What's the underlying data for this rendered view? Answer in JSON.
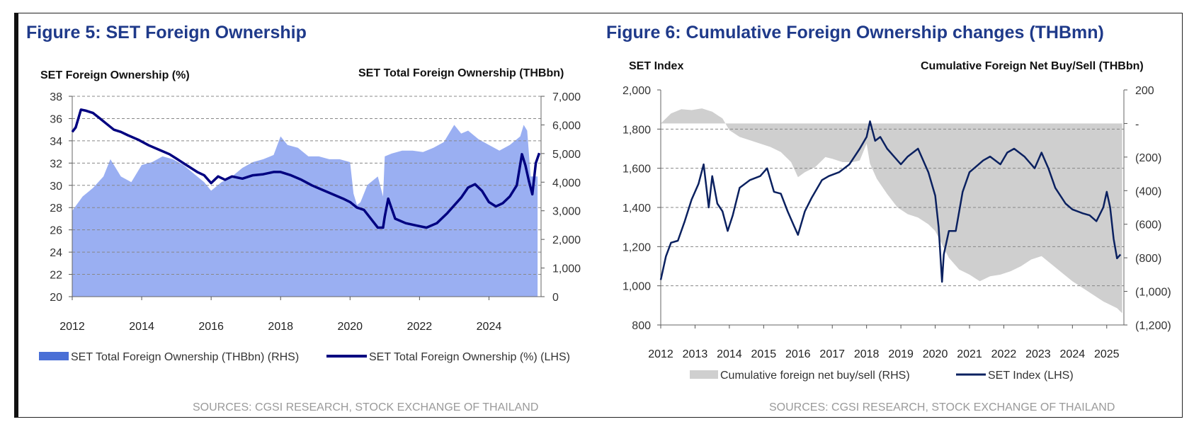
{
  "charts": {
    "left": {
      "figure_title": "Figure 5: SET Foreign Ownership",
      "y_left_title": "SET Foreign Ownership (%)",
      "y_right_title": "SET Total Foreign Ownership (THBbn)",
      "source": "SOURCES: CGSI RESEARCH,  STOCK EXCHANGE OF THAILAND"
    },
    "right": {
      "figure_title": "Figure 6: Cumulative Foreign Ownership changes (THBmn)",
      "y_left_title": "SET Index",
      "y_right_title": "Cumulative  Foreign  Net  Buy/Sell  (THBbn)",
      "source": "SOURCES: CGSI RESEARCH,  STOCK EXCHANGE OF THAILAND"
    }
  },
  "colors": {
    "title_blue": "#1f3a8a",
    "area_blue": "#9aaff2",
    "line_navy": "#000080",
    "line_dark_navy": "#0b2160",
    "area_grey": "#cfcfcf",
    "grid": "#888888",
    "source_grey": "#9a9a9a"
  },
  "chart_data": [
    {
      "type": "area",
      "title": "Figure 5: SET Foreign Ownership",
      "x_ticks": [
        "2012",
        "2014",
        "2016",
        "2018",
        "2020",
        "2022",
        "2024"
      ],
      "xlim": [
        2012.0,
        2025.5
      ],
      "y_left": {
        "label": "SET Foreign Ownership (%)",
        "lim": [
          20,
          38
        ],
        "ticks": [
          "20",
          "22",
          "24",
          "26",
          "28",
          "30",
          "32",
          "34",
          "36",
          "38"
        ]
      },
      "y_right": {
        "label": "SET Total Foreign Ownership (THBbn)",
        "lim": [
          0,
          7000
        ],
        "ticks": [
          "0",
          "1,000",
          "2,000",
          "3,000",
          "4,000",
          "5,000",
          "6,000",
          "7,000"
        ]
      },
      "grid": "horizontal dashed",
      "legend_position": "bottom",
      "series": [
        {
          "name": "SET Total Foreign Ownership (THBbn) (RHS)",
          "kind": "area",
          "axis": "right",
          "x": [
            2012.0,
            2012.3,
            2012.6,
            2012.9,
            2013.1,
            2013.4,
            2013.7,
            2014.0,
            2014.3,
            2014.6,
            2014.9,
            2015.2,
            2015.5,
            2015.8,
            2016.0,
            2016.3,
            2016.6,
            2016.9,
            2017.2,
            2017.5,
            2017.8,
            2018.0,
            2018.2,
            2018.5,
            2018.8,
            2019.1,
            2019.4,
            2019.7,
            2020.0,
            2020.1,
            2020.2,
            2020.3,
            2020.5,
            2020.8,
            2020.95,
            2021.0,
            2021.2,
            2021.5,
            2021.8,
            2022.1,
            2022.4,
            2022.7,
            2023.0,
            2023.2,
            2023.4,
            2023.7,
            2024.0,
            2024.3,
            2024.6,
            2024.9,
            2025.0,
            2025.1,
            2025.2,
            2025.4
          ],
          "y": [
            3000,
            3500,
            3800,
            4200,
            4800,
            4200,
            4000,
            4600,
            4700,
            4900,
            4800,
            4600,
            4300,
            4000,
            3700,
            4000,
            4200,
            4500,
            4700,
            4800,
            4950,
            5600,
            5300,
            5200,
            4900,
            4900,
            4800,
            4800,
            4700,
            3600,
            3200,
            3300,
            3900,
            4200,
            3500,
            4900,
            5000,
            5100,
            5100,
            5050,
            5200,
            5400,
            6000,
            5700,
            5800,
            5500,
            5300,
            5100,
            5300,
            5600,
            6000,
            5800,
            4200,
            4200
          ]
        },
        {
          "name": "SET Total Foreign Ownership (%) (LHS)",
          "kind": "line",
          "axis": "left",
          "x": [
            2012.0,
            2012.1,
            2012.25,
            2012.4,
            2012.6,
            2012.8,
            2013.0,
            2013.2,
            2013.4,
            2013.6,
            2013.9,
            2014.2,
            2014.5,
            2014.8,
            2015.0,
            2015.3,
            2015.6,
            2015.8,
            2016.0,
            2016.2,
            2016.4,
            2016.6,
            2016.9,
            2017.2,
            2017.5,
            2017.8,
            2018.0,
            2018.3,
            2018.6,
            2018.9,
            2019.2,
            2019.5,
            2019.8,
            2020.0,
            2020.2,
            2020.4,
            2020.6,
            2020.8,
            2020.95,
            2021.0,
            2021.1,
            2021.3,
            2021.6,
            2021.9,
            2022.2,
            2022.5,
            2022.8,
            2023.0,
            2023.2,
            2023.4,
            2023.6,
            2023.8,
            2024.0,
            2024.2,
            2024.4,
            2024.6,
            2024.8,
            2024.95,
            2025.05,
            2025.15,
            2025.25,
            2025.35,
            2025.45
          ],
          "y": [
            34.8,
            35.2,
            36.8,
            36.7,
            36.5,
            36.0,
            35.5,
            35.0,
            34.8,
            34.5,
            34.1,
            33.6,
            33.2,
            32.8,
            32.4,
            31.8,
            31.2,
            30.9,
            30.2,
            30.8,
            30.5,
            30.8,
            30.6,
            30.9,
            31.0,
            31.2,
            31.2,
            30.9,
            30.5,
            30.0,
            29.6,
            29.2,
            28.8,
            28.5,
            28.0,
            27.8,
            27.0,
            26.2,
            26.2,
            27.2,
            28.8,
            27.0,
            26.6,
            26.4,
            26.2,
            26.6,
            27.5,
            28.2,
            28.9,
            29.8,
            30.1,
            29.5,
            28.5,
            28.1,
            28.4,
            29.0,
            30.0,
            32.8,
            31.8,
            30.4,
            29.2,
            32.0,
            32.9
          ]
        }
      ]
    },
    {
      "type": "line",
      "title": "Figure 6: Cumulative Foreign Ownership changes (THBmn)",
      "x_ticks": [
        "2012",
        "2013",
        "2014",
        "2015",
        "2016",
        "2017",
        "2018",
        "2019",
        "2020",
        "2021",
        "2022",
        "2023",
        "2024",
        "2025"
      ],
      "xlim": [
        2012.0,
        2025.5
      ],
      "y_left": {
        "label": "SET Index",
        "lim": [
          800,
          2000
        ],
        "ticks": [
          "800",
          "1,000",
          "1,200",
          "1,400",
          "1,600",
          "1,800",
          "2,000"
        ]
      },
      "y_right": {
        "label": "Cumulative  Foreign  Net  Buy/Sell  (THBbn)",
        "lim": [
          -1200,
          200
        ],
        "ticks": [
          "(1,200)",
          "(1,000)",
          "(800)",
          "(600)",
          "(400)",
          "(200)",
          "-",
          "200"
        ]
      },
      "grid": "horizontal dashed",
      "legend_position": "bottom",
      "series": [
        {
          "name": "Cumulative foreign net buy/sell (RHS)",
          "kind": "area",
          "axis": "right",
          "x": [
            2012.0,
            2012.3,
            2012.6,
            2012.9,
            2013.2,
            2013.5,
            2013.8,
            2014.0,
            2014.3,
            2014.6,
            2014.9,
            2015.2,
            2015.5,
            2015.8,
            2016.0,
            2016.2,
            2016.5,
            2016.8,
            2017.0,
            2017.3,
            2017.6,
            2017.8,
            2018.0,
            2018.1,
            2018.3,
            2018.6,
            2018.9,
            2019.2,
            2019.5,
            2019.8,
            2020.0,
            2020.2,
            2020.4,
            2020.7,
            2021.0,
            2021.3,
            2021.6,
            2021.9,
            2022.2,
            2022.5,
            2022.8,
            2023.1,
            2023.4,
            2023.7,
            2024.0,
            2024.3,
            2024.6,
            2024.9,
            2025.1,
            2025.3,
            2025.45
          ],
          "y": [
            0,
            60,
            85,
            80,
            90,
            70,
            30,
            -40,
            -80,
            -100,
            -120,
            -140,
            -170,
            -230,
            -320,
            -290,
            -260,
            -200,
            -210,
            -230,
            -230,
            -220,
            -120,
            -240,
            -330,
            -420,
            -500,
            -540,
            -560,
            -600,
            -640,
            -720,
            -800,
            -870,
            -900,
            -940,
            -910,
            -900,
            -880,
            -850,
            -810,
            -790,
            -840,
            -890,
            -940,
            -980,
            -1020,
            -1060,
            -1080,
            -1100,
            -1130
          ]
        },
        {
          "name": "SET Index (LHS)",
          "kind": "line",
          "axis": "left",
          "x": [
            2012.0,
            2012.15,
            2012.3,
            2012.5,
            2012.7,
            2012.9,
            2013.1,
            2013.25,
            2013.4,
            2013.5,
            2013.65,
            2013.8,
            2013.95,
            2014.1,
            2014.3,
            2014.6,
            2014.9,
            2015.1,
            2015.3,
            2015.5,
            2015.7,
            2015.9,
            2016.0,
            2016.2,
            2016.4,
            2016.7,
            2016.9,
            2017.2,
            2017.5,
            2017.8,
            2018.0,
            2018.1,
            2018.25,
            2018.4,
            2018.6,
            2018.8,
            2019.0,
            2019.2,
            2019.5,
            2019.8,
            2020.0,
            2020.1,
            2020.2,
            2020.25,
            2020.4,
            2020.6,
            2020.8,
            2021.0,
            2021.2,
            2021.4,
            2021.6,
            2021.9,
            2022.1,
            2022.3,
            2022.6,
            2022.9,
            2023.1,
            2023.3,
            2023.5,
            2023.8,
            2024.0,
            2024.3,
            2024.5,
            2024.7,
            2024.9,
            2025.0,
            2025.1,
            2025.2,
            2025.3,
            2025.4
          ],
          "y": [
            1030,
            1150,
            1220,
            1230,
            1330,
            1440,
            1520,
            1620,
            1400,
            1560,
            1420,
            1380,
            1280,
            1360,
            1500,
            1540,
            1560,
            1600,
            1480,
            1470,
            1380,
            1300,
            1260,
            1380,
            1450,
            1540,
            1560,
            1580,
            1620,
            1700,
            1760,
            1840,
            1740,
            1760,
            1700,
            1660,
            1620,
            1660,
            1700,
            1580,
            1460,
            1300,
            1020,
            1160,
            1280,
            1280,
            1480,
            1580,
            1610,
            1640,
            1660,
            1620,
            1680,
            1700,
            1660,
            1600,
            1680,
            1600,
            1500,
            1420,
            1390,
            1370,
            1360,
            1330,
            1400,
            1480,
            1400,
            1240,
            1140,
            1160
          ]
        }
      ]
    }
  ],
  "legend": {
    "left": [
      "SET Total Foreign Ownership (THBbn) (RHS)",
      "SET Total Foreign Ownership (%) (LHS)"
    ],
    "right": [
      "Cumulative foreign net buy/sell (RHS)",
      "SET Index (LHS)"
    ]
  }
}
